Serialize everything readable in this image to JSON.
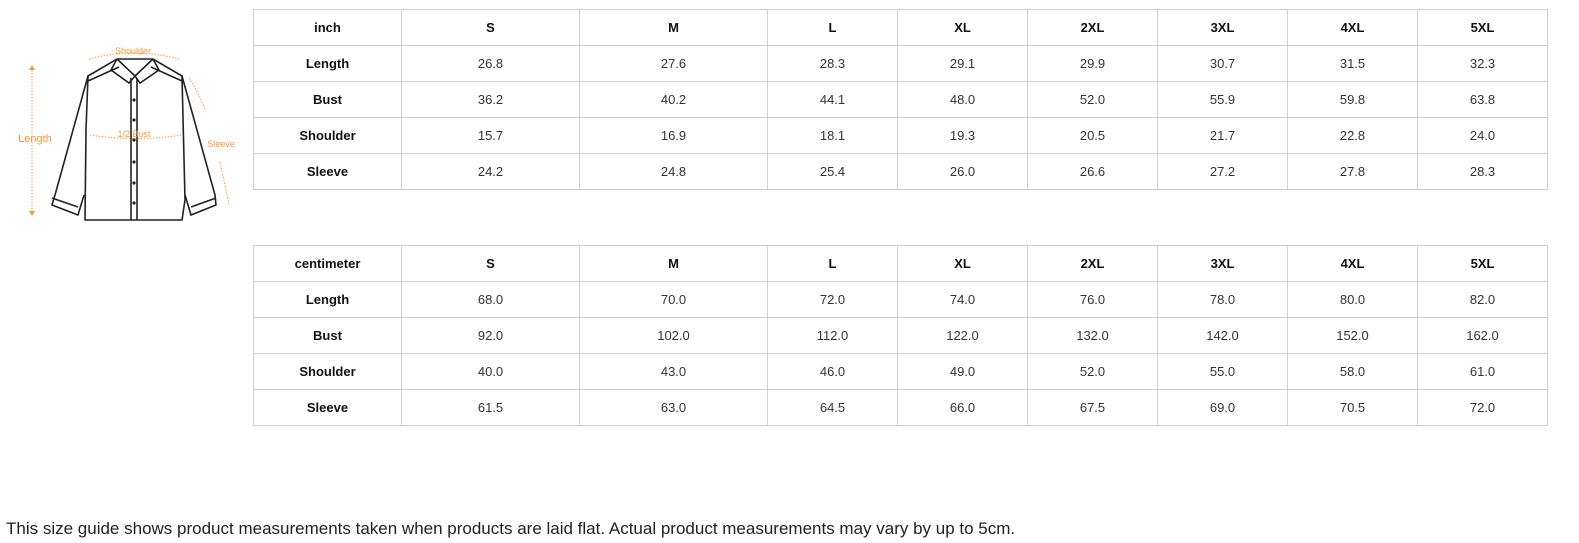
{
  "diagram": {
    "labels": {
      "shoulder": "Shoulder",
      "length": "Length",
      "bust": "1/2 Bust",
      "sleeve": "Sleeve"
    },
    "accent_color": "#f39a3b"
  },
  "tables": [
    {
      "unit": "inch",
      "sizes": [
        "S",
        "M",
        "L",
        "XL",
        "2XL",
        "3XL",
        "4XL",
        "5XL"
      ],
      "rows": [
        {
          "label": "Length",
          "values": [
            "26.8",
            "27.6",
            "28.3",
            "29.1",
            "29.9",
            "30.7",
            "31.5",
            "32.3"
          ]
        },
        {
          "label": "Bust",
          "values": [
            "36.2",
            "40.2",
            "44.1",
            "48.0",
            "52.0",
            "55.9",
            "59.8",
            "63.8"
          ]
        },
        {
          "label": "Shoulder",
          "values": [
            "15.7",
            "16.9",
            "18.1",
            "19.3",
            "20.5",
            "21.7",
            "22.8",
            "24.0"
          ]
        },
        {
          "label": "Sleeve",
          "values": [
            "24.2",
            "24.8",
            "25.4",
            "26.0",
            "26.6",
            "27.2",
            "27.8",
            "28.3"
          ]
        }
      ]
    },
    {
      "unit": "centimeter",
      "sizes": [
        "S",
        "M",
        "L",
        "XL",
        "2XL",
        "3XL",
        "4XL",
        "5XL"
      ],
      "rows": [
        {
          "label": "Length",
          "values": [
            "68.0",
            "70.0",
            "72.0",
            "74.0",
            "76.0",
            "78.0",
            "80.0",
            "82.0"
          ]
        },
        {
          "label": "Bust",
          "values": [
            "92.0",
            "102.0",
            "112.0",
            "122.0",
            "132.0",
            "142.0",
            "152.0",
            "162.0"
          ]
        },
        {
          "label": "Shoulder",
          "values": [
            "40.0",
            "43.0",
            "46.0",
            "49.0",
            "52.0",
            "55.0",
            "58.0",
            "61.0"
          ]
        },
        {
          "label": "Sleeve",
          "values": [
            "61.5",
            "63.0",
            "64.5",
            "66.0",
            "67.5",
            "69.0",
            "70.5",
            "72.0"
          ]
        }
      ]
    }
  ],
  "note": "This size guide shows product measurements taken when products are laid flat. Actual product measurements may vary by up to 5cm."
}
